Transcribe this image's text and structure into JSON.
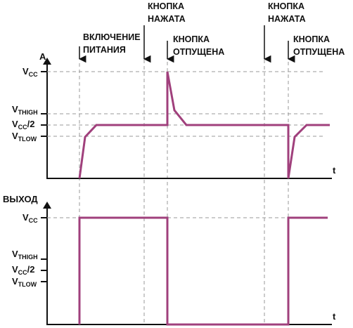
{
  "colors": {
    "signal": "#a0407c",
    "axis": "#111111",
    "guide": "#9a9a9a"
  },
  "events": {
    "power_on": [
      "ВКЛЮЧЕНИЕ",
      "ПИТАНИЯ"
    ],
    "press_1": [
      "КНОПКА",
      "НАЖАТА"
    ],
    "release_1": [
      "КНОПКА",
      "ОТПУЩЕНА"
    ],
    "press_2": [
      "КНОПКА",
      "НАЖАТА"
    ],
    "release_2": [
      "КНОПКА",
      "ОТПУЩЕНА"
    ]
  },
  "top_plot": {
    "ylabel": "A",
    "xlabel": "t",
    "levels": {
      "vcc": "V",
      "vcc_sub": "CC",
      "vthigh": "V",
      "vthigh_sub": "THIGH",
      "vcc2": "V",
      "vcc2_sub": "CC",
      "vcc2_suffix": "/2",
      "vtlow": "V",
      "vtlow_sub": "TLOW"
    }
  },
  "bottom_plot": {
    "ylabel": "ВЫХОД",
    "xlabel": "t",
    "levels": {
      "vcc": "V",
      "vcc_sub": "CC",
      "vthigh": "V",
      "vthigh_sub": "THIGH",
      "vcc2": "V",
      "vcc2_sub": "CC",
      "vcc2_suffix": "/2",
      "vtlow": "V",
      "vtlow_sub": "TLOW"
    }
  }
}
